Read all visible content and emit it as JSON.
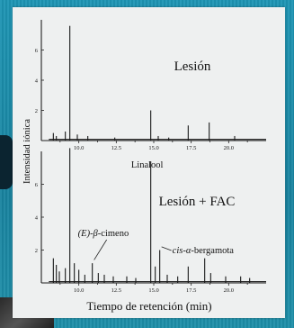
{
  "chart_data": {
    "type": "line",
    "ylabel": "Intensidad iónica",
    "xlabel": "Tiempo de retención (min)",
    "xlim": [
      7.5,
      22.5
    ],
    "x_ticks": [
      "10.0",
      "12.5",
      "15.0",
      "17.5",
      "20.0"
    ],
    "x_tick_values": [
      10.0,
      12.5,
      15.0,
      17.5,
      20.0
    ],
    "panels": [
      {
        "title": "Lesión",
        "ylim": [
          0,
          8
        ],
        "y_ticks": [
          "2",
          "4",
          "6"
        ],
        "y_tick_values": [
          2,
          4,
          6
        ],
        "series": [
          {
            "peaks": [
              {
                "x": 8.3,
                "y": 0.5
              },
              {
                "x": 8.5,
                "y": 0.3
              },
              {
                "x": 9.1,
                "y": 0.6
              },
              {
                "x": 9.4,
                "y": 7.6
              },
              {
                "x": 9.9,
                "y": 0.4
              },
              {
                "x": 10.6,
                "y": 0.3
              },
              {
                "x": 12.4,
                "y": 0.2
              },
              {
                "x": 14.8,
                "y": 2.0
              },
              {
                "x": 15.3,
                "y": 0.3
              },
              {
                "x": 16.0,
                "y": 0.2
              },
              {
                "x": 17.3,
                "y": 1.0
              },
              {
                "x": 18.7,
                "y": 1.2
              },
              {
                "x": 20.4,
                "y": 0.3
              }
            ]
          }
        ],
        "annotations": []
      },
      {
        "title": "Lesión + FAC",
        "ylim": [
          0,
          8
        ],
        "y_ticks": [
          "2",
          "4",
          "6"
        ],
        "y_tick_values": [
          2,
          4,
          6
        ],
        "series": [
          {
            "peaks": [
              {
                "x": 8.3,
                "y": 1.5
              },
              {
                "x": 8.5,
                "y": 1.1
              },
              {
                "x": 8.7,
                "y": 0.7
              },
              {
                "x": 9.1,
                "y": 0.9
              },
              {
                "x": 9.4,
                "y": 8.2
              },
              {
                "x": 9.7,
                "y": 1.2
              },
              {
                "x": 10.0,
                "y": 0.8
              },
              {
                "x": 10.4,
                "y": 0.5
              },
              {
                "x": 10.9,
                "y": 1.2
              },
              {
                "x": 11.3,
                "y": 0.6
              },
              {
                "x": 11.7,
                "y": 0.5
              },
              {
                "x": 12.3,
                "y": 0.4
              },
              {
                "x": 13.2,
                "y": 0.4
              },
              {
                "x": 13.8,
                "y": 0.3
              },
              {
                "x": 14.8,
                "y": 7.4
              },
              {
                "x": 15.1,
                "y": 1.0
              },
              {
                "x": 15.4,
                "y": 2.0
              },
              {
                "x": 15.9,
                "y": 0.5
              },
              {
                "x": 16.6,
                "y": 0.4
              },
              {
                "x": 17.3,
                "y": 1.0
              },
              {
                "x": 18.4,
                "y": 1.5
              },
              {
                "x": 18.8,
                "y": 0.6
              },
              {
                "x": 19.8,
                "y": 0.4
              },
              {
                "x": 20.8,
                "y": 0.4
              },
              {
                "x": 21.4,
                "y": 0.3
              }
            ]
          }
        ],
        "annotations": [
          {
            "text": "Linalool",
            "x": 14.8
          },
          {
            "text_prefix": "(E)-β-",
            "text_main": "cimeno",
            "x": 10.9
          },
          {
            "text_prefix": "cis-α-",
            "text_main": "bergamota",
            "x": 15.4
          }
        ]
      }
    ]
  }
}
